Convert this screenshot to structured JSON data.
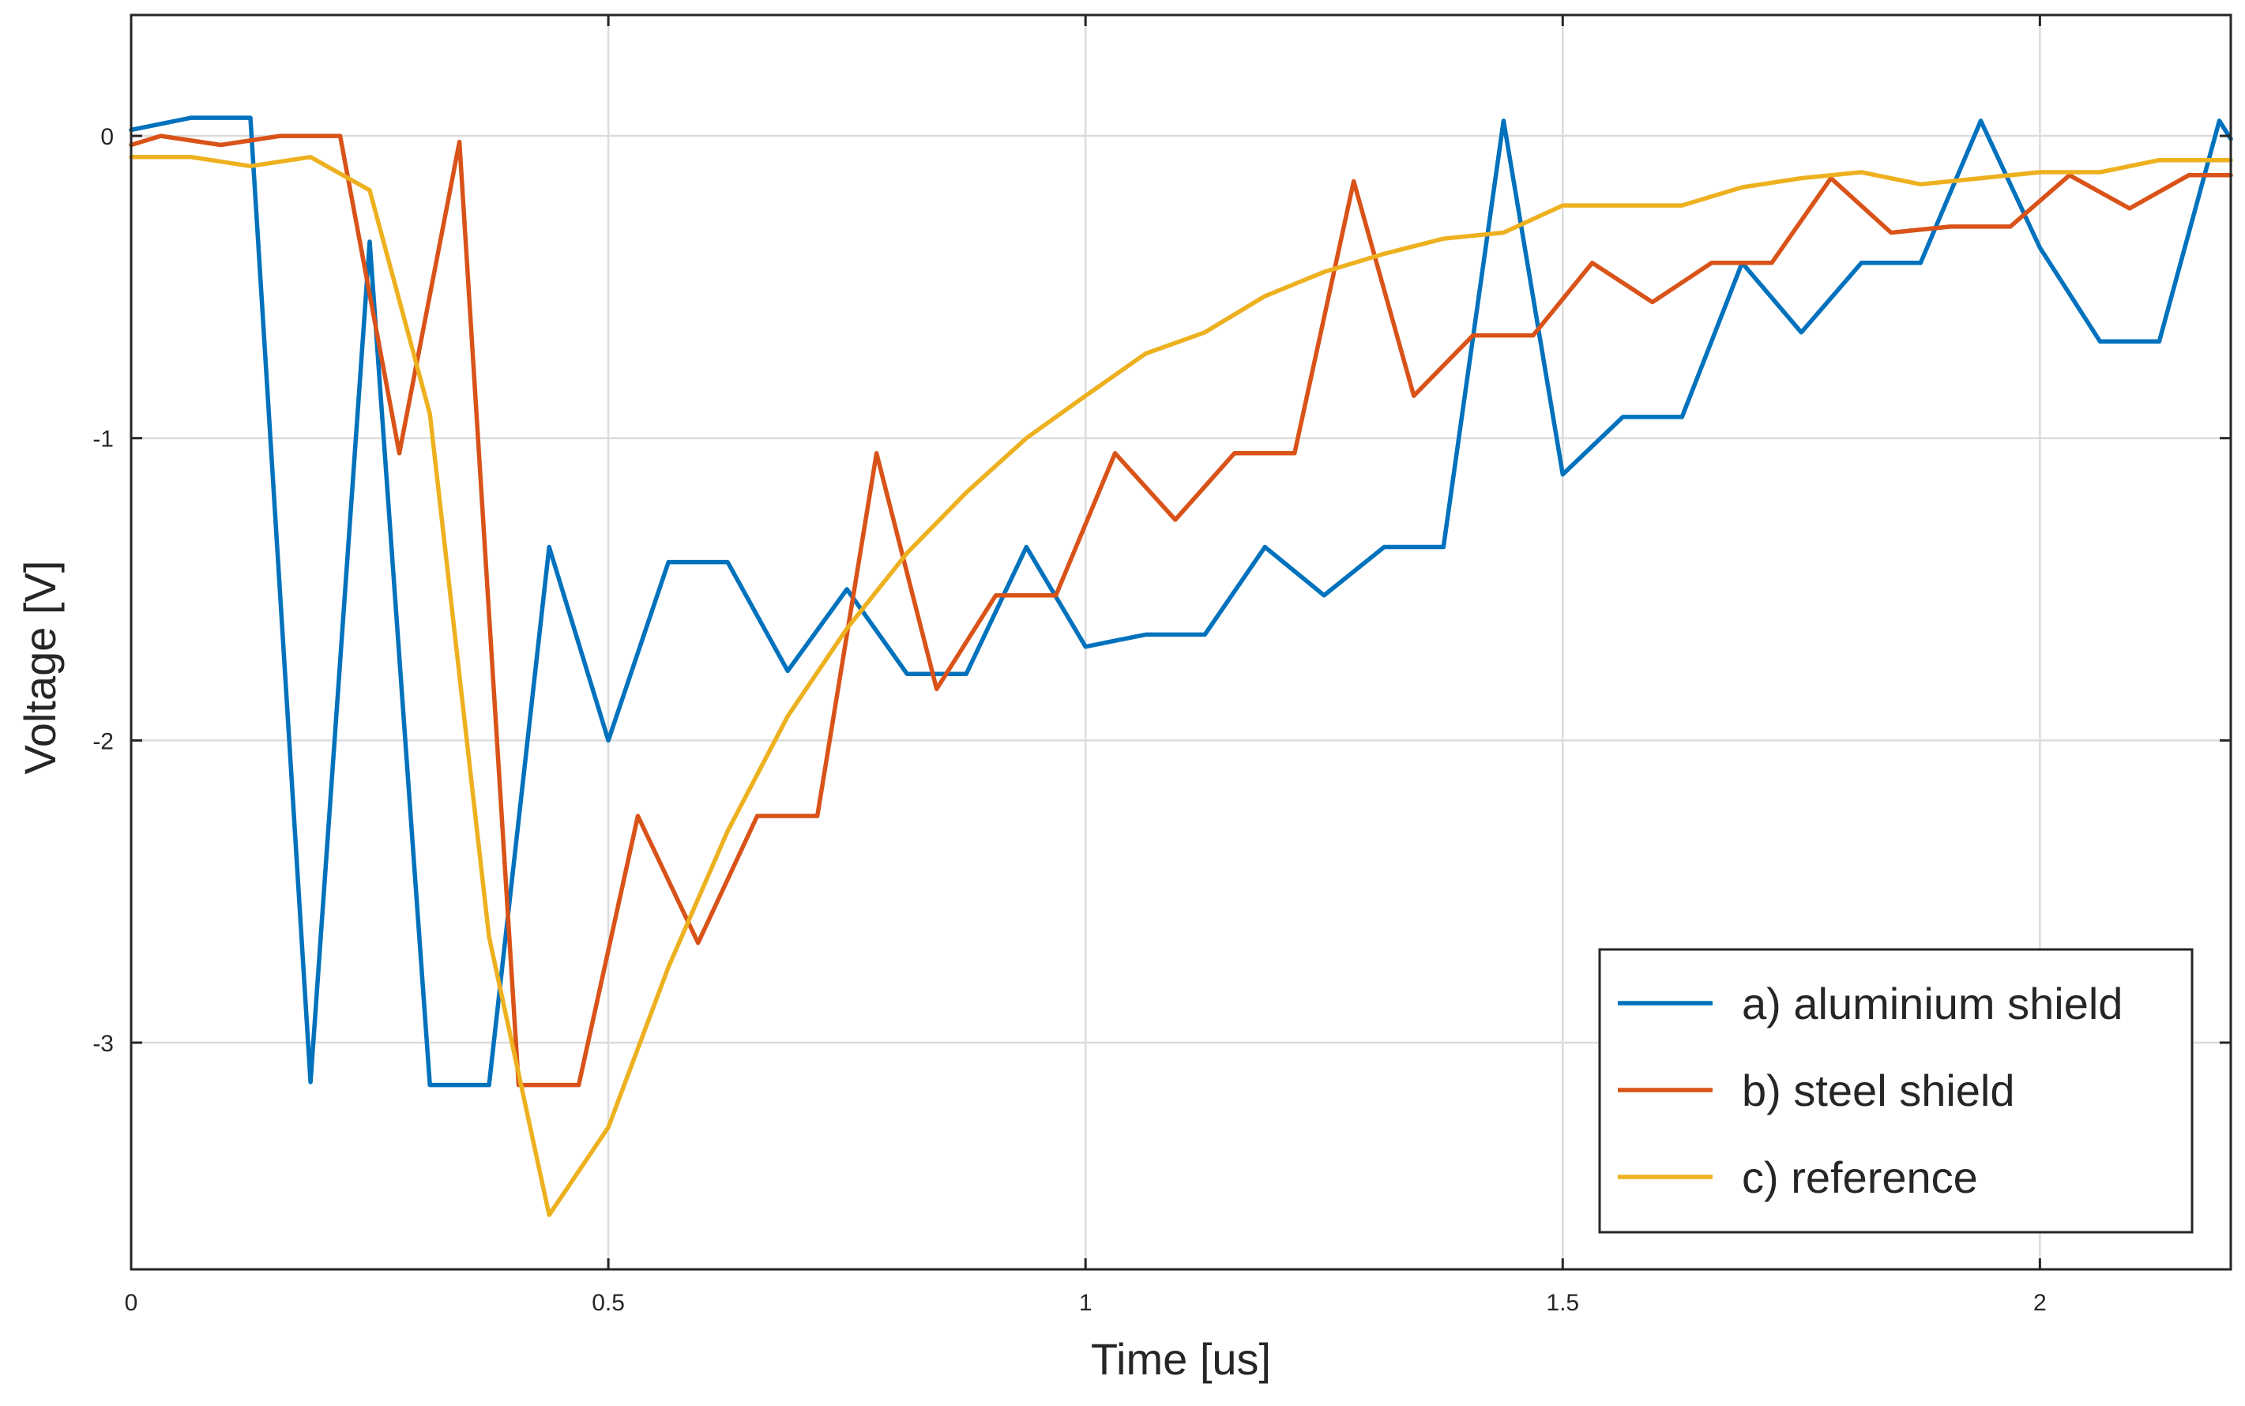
{
  "chart_data": {
    "type": "line",
    "title": "",
    "xlabel": "Time [us]",
    "ylabel": "Voltage [V]",
    "xlim": [
      0,
      2.2
    ],
    "ylim": [
      -3.75,
      0.4
    ],
    "xticks": [
      0,
      0.5,
      1,
      1.5,
      2
    ],
    "xtick_labels": [
      "0",
      "0.5",
      "1",
      "1.5",
      "2"
    ],
    "yticks": [
      0,
      -1,
      -2,
      -3
    ],
    "ytick_labels": [
      "0",
      "-1",
      "-2",
      "-3"
    ],
    "grid": true,
    "legend_position": "bottom-right",
    "series": [
      {
        "name": "a) aluminium shield",
        "color": "#0072BD",
        "x": [
          0,
          0.063,
          0.125,
          0.188,
          0.25,
          0.313,
          0.375,
          0.438,
          0.5,
          0.563,
          0.625,
          0.688,
          0.75,
          0.813,
          0.875,
          0.938,
          1.0,
          1.063,
          1.125,
          1.188,
          1.25,
          1.313,
          1.375,
          1.438,
          1.5,
          1.563,
          1.625,
          1.688,
          1.75,
          1.813,
          1.875,
          1.938,
          2.0,
          2.063,
          2.125,
          2.188,
          2.2
        ],
        "y": [
          0.02,
          0.06,
          0.06,
          -3.13,
          -0.35,
          -3.14,
          -3.14,
          -1.36,
          -2.0,
          -1.41,
          -1.41,
          -1.77,
          -1.5,
          -1.78,
          -1.78,
          -1.36,
          -1.69,
          -1.65,
          -1.65,
          -1.36,
          -1.52,
          -1.36,
          -1.36,
          0.05,
          -1.12,
          -0.93,
          -0.93,
          -0.42,
          -0.65,
          -0.42,
          -0.42,
          0.05,
          -0.37,
          -0.68,
          -0.68,
          0.05,
          -0.01
        ]
      },
      {
        "name": "b) steel shield",
        "color": "#D95319",
        "x": [
          0,
          0.031,
          0.094,
          0.156,
          0.219,
          0.281,
          0.344,
          0.406,
          0.469,
          0.531,
          0.594,
          0.656,
          0.719,
          0.781,
          0.844,
          0.906,
          0.969,
          1.031,
          1.094,
          1.156,
          1.219,
          1.281,
          1.344,
          1.406,
          1.469,
          1.531,
          1.594,
          1.656,
          1.719,
          1.781,
          1.844,
          1.906,
          1.969,
          2.031,
          2.094,
          2.156,
          2.2
        ],
        "y": [
          -0.03,
          0.0,
          -0.03,
          0.0,
          0.0,
          -1.05,
          -0.02,
          -3.14,
          -3.14,
          -2.25,
          -2.67,
          -2.25,
          -2.25,
          -1.05,
          -1.83,
          -1.52,
          -1.52,
          -1.05,
          -1.27,
          -1.05,
          -1.05,
          -0.15,
          -0.86,
          -0.66,
          -0.66,
          -0.42,
          -0.55,
          -0.42,
          -0.42,
          -0.14,
          -0.32,
          -0.3,
          -0.3,
          -0.13,
          -0.24,
          -0.13,
          -0.13
        ]
      },
      {
        "name": "c) reference",
        "color": "#EDB120",
        "x": [
          0,
          0.063,
          0.125,
          0.188,
          0.25,
          0.313,
          0.375,
          0.438,
          0.5,
          0.563,
          0.625,
          0.688,
          0.75,
          0.813,
          0.875,
          0.938,
          1.0,
          1.063,
          1.125,
          1.188,
          1.25,
          1.313,
          1.375,
          1.438,
          1.5,
          1.563,
          1.625,
          1.688,
          1.75,
          1.813,
          1.875,
          1.938,
          2.0,
          2.063,
          2.125,
          2.188,
          2.2
        ],
        "y": [
          -0.07,
          -0.07,
          -0.1,
          -0.07,
          -0.18,
          -0.92,
          -2.65,
          -3.57,
          -3.28,
          -2.75,
          -2.3,
          -1.92,
          -1.63,
          -1.38,
          -1.18,
          -1.0,
          -0.86,
          -0.72,
          -0.65,
          -0.53,
          -0.45,
          -0.39,
          -0.34,
          -0.32,
          -0.23,
          -0.23,
          -0.23,
          -0.17,
          -0.14,
          -0.12,
          -0.16,
          -0.14,
          -0.12,
          -0.12,
          -0.08,
          -0.08,
          -0.08
        ]
      }
    ]
  }
}
